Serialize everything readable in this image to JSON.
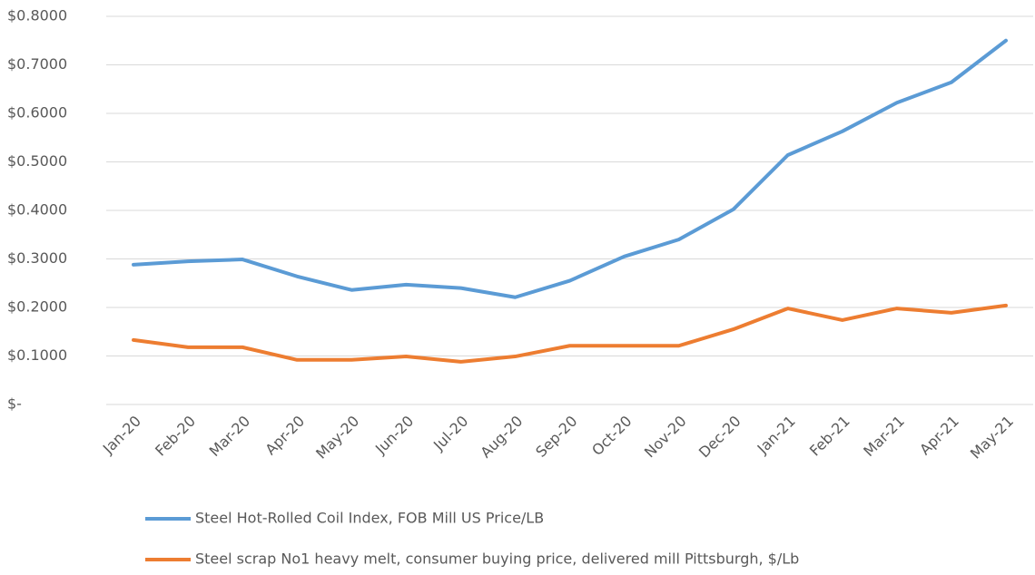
{
  "chart_data": {
    "type": "line",
    "categories": [
      "Jan-20",
      "Feb-20",
      "Mar-20",
      "Apr-20",
      "May-20",
      "Jun-20",
      "Jul-20",
      "Aug-20",
      "Sep-20",
      "Oct-20",
      "Nov-20",
      "Dec-20",
      "Jan-21",
      "Feb-21",
      "Mar-21",
      "Apr-21",
      "May-21"
    ],
    "series": [
      {
        "name": "Steel Hot-Rolled Coil Index, FOB Mill US Price/LB",
        "color": "#5b9bd5",
        "values": [
          0.288,
          0.295,
          0.299,
          0.264,
          0.236,
          0.247,
          0.24,
          0.221,
          0.255,
          0.305,
          0.34,
          0.402,
          0.514,
          0.563,
          0.622,
          0.664,
          0.75
        ]
      },
      {
        "name": "Steel scrap No1 heavy melt, consumer buying price, delivered mill Pittsburgh, $/Lb",
        "color": "#ed7d31",
        "values": [
          0.133,
          0.118,
          0.118,
          0.092,
          0.092,
          0.099,
          0.088,
          0.099,
          0.121,
          0.121,
          0.121,
          0.155,
          0.198,
          0.174,
          0.198,
          0.189,
          0.204
        ]
      }
    ],
    "ylim": [
      0,
      0.8
    ],
    "yticks": [
      {
        "value": 0,
        "label": "$-"
      },
      {
        "value": 0.1,
        "label": "$0.1000"
      },
      {
        "value": 0.2,
        "label": "$0.2000"
      },
      {
        "value": 0.3,
        "label": "$0.3000"
      },
      {
        "value": 0.4,
        "label": "$0.4000"
      },
      {
        "value": 0.5,
        "label": "$0.5000"
      },
      {
        "value": 0.6,
        "label": "$0.6000"
      },
      {
        "value": 0.7,
        "label": "$0.7000"
      },
      {
        "value": 0.8,
        "label": "$0.8000"
      }
    ],
    "grid": true,
    "legend": "bottom"
  }
}
